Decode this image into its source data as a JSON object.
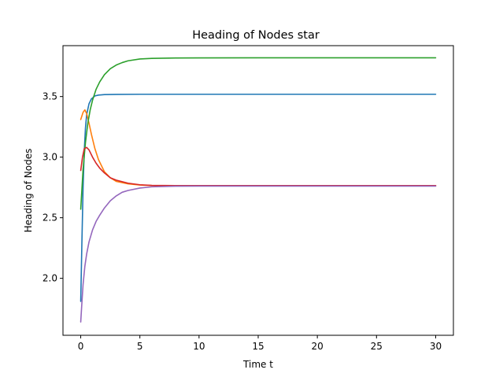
{
  "chart_data": {
    "type": "line",
    "title": "Heading of Nodes star",
    "xlabel": "Time t",
    "ylabel": "Heading of Nodes",
    "xlim": [
      -1.5,
      31.5
    ],
    "ylim": [
      1.53,
      3.92
    ],
    "xticks": [
      0,
      5,
      10,
      15,
      20,
      25,
      30
    ],
    "xtick_labels": [
      "0",
      "5",
      "10",
      "15",
      "20",
      "25",
      "30"
    ],
    "yticks": [
      2.0,
      2.5,
      3.0,
      3.5
    ],
    "ytick_labels": [
      "2.0",
      "2.5",
      "3.0",
      "3.5"
    ],
    "grid": false,
    "series": [
      {
        "color": "#1f77b4",
        "x": [
          0,
          0.1,
          0.2,
          0.3,
          0.4,
          0.5,
          0.7,
          0.9,
          1.2,
          1.5,
          2,
          3,
          5,
          10,
          20,
          30
        ],
        "y": [
          1.81,
          2.3,
          2.75,
          3.05,
          3.24,
          3.35,
          3.44,
          3.48,
          3.505,
          3.512,
          3.516,
          3.518,
          3.519,
          3.519,
          3.519,
          3.519
        ]
      },
      {
        "color": "#ff7f0e",
        "x": [
          0,
          0.2,
          0.35,
          0.5,
          0.7,
          0.9,
          1.2,
          1.5,
          2,
          2.5,
          3,
          4,
          5,
          6,
          8,
          10,
          15,
          20,
          30
        ],
        "y": [
          3.31,
          3.37,
          3.39,
          3.36,
          3.28,
          3.19,
          3.07,
          2.98,
          2.88,
          2.83,
          2.8,
          2.78,
          2.77,
          2.766,
          2.765,
          2.765,
          2.765,
          2.765,
          2.765
        ]
      },
      {
        "color": "#2ca02c",
        "x": [
          0,
          0.2,
          0.4,
          0.6,
          0.8,
          1.0,
          1.3,
          1.6,
          2,
          2.5,
          3,
          3.5,
          4,
          5,
          6,
          8,
          10,
          15,
          20,
          30
        ],
        "y": [
          2.57,
          2.9,
          3.12,
          3.28,
          3.39,
          3.47,
          3.56,
          3.62,
          3.68,
          3.73,
          3.76,
          3.78,
          3.795,
          3.81,
          3.815,
          3.818,
          3.819,
          3.82,
          3.82,
          3.82
        ]
      },
      {
        "color": "#d62728",
        "x": [
          0,
          0.15,
          0.3,
          0.5,
          0.7,
          1.0,
          1.3,
          1.6,
          2,
          2.5,
          3,
          4,
          5,
          6,
          8,
          10,
          20,
          30
        ],
        "y": [
          2.89,
          3.0,
          3.07,
          3.08,
          3.06,
          3.0,
          2.95,
          2.91,
          2.87,
          2.83,
          2.81,
          2.785,
          2.772,
          2.767,
          2.765,
          2.765,
          2.765,
          2.765
        ]
      },
      {
        "color": "#9467bd",
        "x": [
          0,
          0.1,
          0.2,
          0.35,
          0.5,
          0.7,
          1.0,
          1.3,
          1.6,
          2,
          2.5,
          3,
          3.5,
          4,
          5,
          6,
          8,
          10,
          20,
          30
        ],
        "y": [
          1.64,
          1.8,
          1.95,
          2.1,
          2.2,
          2.3,
          2.4,
          2.47,
          2.52,
          2.58,
          2.64,
          2.68,
          2.71,
          2.725,
          2.745,
          2.755,
          2.76,
          2.761,
          2.761,
          2.761
        ]
      }
    ]
  }
}
